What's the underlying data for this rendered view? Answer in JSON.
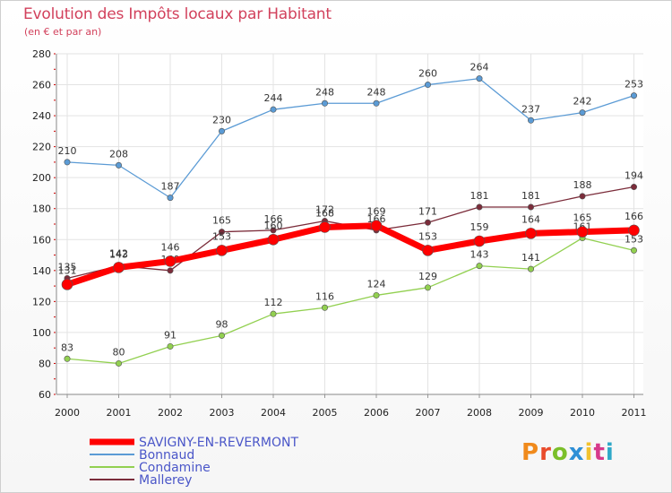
{
  "header": {
    "title": "Evolution des Impôts locaux par Habitant",
    "subtitle": "(en € et par an)"
  },
  "logo": {
    "text": "Proxiti",
    "colors": [
      "#f08a1c",
      "#e94b2b",
      "#7bbf2a",
      "#2e8fd6",
      "#f2c22e",
      "#d63a8b",
      "#2ea8c8"
    ]
  },
  "chart_data": {
    "type": "line",
    "categories": [
      "2000",
      "2001",
      "2002",
      "2003",
      "2004",
      "2005",
      "2006",
      "2007",
      "2008",
      "2009",
      "2010",
      "2011"
    ],
    "ylim": [
      60,
      280
    ],
    "yticks": [
      60,
      80,
      100,
      120,
      140,
      160,
      180,
      200,
      220,
      240,
      260,
      280
    ],
    "grid": true,
    "legend_position": "bottom-left",
    "series": [
      {
        "name": "Bonnaud",
        "color": "#5b9bd5",
        "values": [
          210,
          208,
          187,
          230,
          244,
          248,
          248,
          260,
          264,
          237,
          242,
          253
        ]
      },
      {
        "name": "Condamine",
        "color": "#92d050",
        "values": [
          83,
          80,
          91,
          98,
          112,
          116,
          124,
          129,
          143,
          141,
          161,
          153
        ]
      },
      {
        "name": "Mallerey",
        "color": "#7b2c3a",
        "values": [
          135,
          143,
          140,
          165,
          166,
          172,
          166,
          171,
          181,
          181,
          188,
          194
        ]
      },
      {
        "name": "SAVIGNY-EN-REVERMONT",
        "color": "#ff0000",
        "values": [
          131,
          142,
          146,
          153,
          160,
          168,
          169,
          153,
          159,
          164,
          165,
          166
        ]
      }
    ]
  }
}
